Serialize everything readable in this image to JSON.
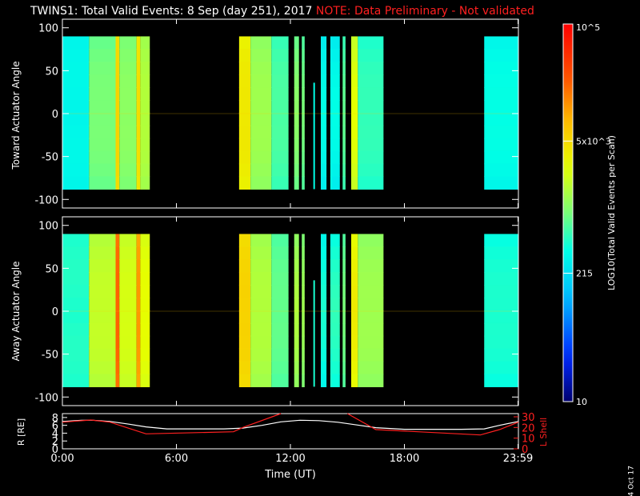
{
  "header": {
    "title": "TWINS1: Total Valid Events:  8 Sep (day 251), 2017",
    "note": "NOTE: Data Preliminary - Not validated",
    "date_stamp": "4 Oct 17"
  },
  "colors": {
    "background": "#000000",
    "foreground": "#ffffff",
    "note": "#ff2020",
    "l_shell_line": "#ff2020",
    "r_line": "#ffffff"
  },
  "chart_data": [
    {
      "type": "heatmap",
      "panel": "toward",
      "ylabel": "Toward Actuator Angle",
      "ylim": [
        -110,
        110
      ],
      "yticks": [
        100,
        50,
        0,
        -50,
        -100
      ],
      "xlim": [
        0,
        24
      ],
      "data_angle_range": [
        -88,
        90
      ],
      "blocks": [
        {
          "t0": 0.0,
          "t1": 1.4,
          "base": 0.38,
          "edge": 0.42
        },
        {
          "t0": 1.4,
          "t1": 2.8,
          "base": 0.5,
          "edge": 0.52
        },
        {
          "t0": 2.8,
          "t1": 3.0,
          "base": 0.7,
          "edge": 0.72
        },
        {
          "t0": 3.0,
          "t1": 3.9,
          "base": 0.52,
          "edge": 0.54
        },
        {
          "t0": 3.9,
          "t1": 4.1,
          "base": 0.68,
          "edge": 0.7
        },
        {
          "t0": 4.1,
          "t1": 4.6,
          "base": 0.56,
          "edge": 0.58
        },
        {
          "t0": 9.3,
          "t1": 9.9,
          "base": 0.66,
          "edge": 0.68
        },
        {
          "t0": 9.9,
          "t1": 11.0,
          "base": 0.54,
          "edge": 0.56
        },
        {
          "t0": 11.0,
          "t1": 11.9,
          "base": 0.46,
          "edge": 0.48
        },
        {
          "t0": 12.2,
          "t1": 12.45,
          "base": 0.52,
          "edge": 0.52
        },
        {
          "t0": 12.6,
          "t1": 12.75,
          "base": 0.5,
          "edge": 0.5
        },
        {
          "t0": 13.6,
          "t1": 13.9,
          "base": 0.4,
          "edge": 0.4
        },
        {
          "t0": 14.1,
          "t1": 14.6,
          "base": 0.4,
          "edge": 0.4
        },
        {
          "t0": 14.75,
          "t1": 14.9,
          "base": 0.48,
          "edge": 0.48
        },
        {
          "t0": 15.2,
          "t1": 15.55,
          "base": 0.62,
          "edge": 0.62
        },
        {
          "t0": 15.55,
          "t1": 16.9,
          "base": 0.44,
          "edge": 0.46
        },
        {
          "t0": 22.2,
          "t1": 24.0,
          "base": 0.4,
          "edge": 0.42
        }
      ],
      "spikes": [
        {
          "t": 13.25,
          "a0": -88,
          "a1": 36,
          "level": 0.4
        },
        {
          "t": 14.15,
          "a0": -88,
          "a1": -50,
          "level": 0.4
        }
      ]
    },
    {
      "type": "heatmap",
      "panel": "away",
      "ylabel": "Away Actuator Angle",
      "ylim": [
        -110,
        110
      ],
      "yticks": [
        100,
        50,
        0,
        -50,
        -100
      ],
      "xlim": [
        0,
        24
      ],
      "data_angle_range": [
        -88,
        90
      ],
      "blocks": [
        {
          "t0": 0.0,
          "t1": 1.4,
          "base": 0.42,
          "edge": 0.46
        },
        {
          "t0": 1.4,
          "t1": 2.8,
          "base": 0.58,
          "edge": 0.6
        },
        {
          "t0": 2.8,
          "t1": 3.0,
          "base": 0.84,
          "edge": 0.86
        },
        {
          "t0": 3.0,
          "t1": 3.9,
          "base": 0.6,
          "edge": 0.62
        },
        {
          "t0": 3.9,
          "t1": 4.1,
          "base": 0.78,
          "edge": 0.8
        },
        {
          "t0": 4.1,
          "t1": 4.6,
          "base": 0.62,
          "edge": 0.64
        },
        {
          "t0": 9.3,
          "t1": 9.9,
          "base": 0.7,
          "edge": 0.72
        },
        {
          "t0": 9.9,
          "t1": 11.0,
          "base": 0.56,
          "edge": 0.58
        },
        {
          "t0": 11.0,
          "t1": 11.9,
          "base": 0.48,
          "edge": 0.5
        },
        {
          "t0": 12.2,
          "t1": 12.45,
          "base": 0.56,
          "edge": 0.56
        },
        {
          "t0": 12.6,
          "t1": 12.75,
          "base": 0.54,
          "edge": 0.54
        },
        {
          "t0": 13.6,
          "t1": 13.9,
          "base": 0.42,
          "edge": 0.42
        },
        {
          "t0": 14.1,
          "t1": 14.6,
          "base": 0.44,
          "edge": 0.44
        },
        {
          "t0": 14.75,
          "t1": 14.9,
          "base": 0.5,
          "edge": 0.5
        },
        {
          "t0": 15.2,
          "t1": 15.55,
          "base": 0.66,
          "edge": 0.66
        },
        {
          "t0": 15.55,
          "t1": 16.9,
          "base": 0.54,
          "edge": 0.56
        },
        {
          "t0": 22.2,
          "t1": 24.0,
          "base": 0.42,
          "edge": 0.44
        }
      ],
      "spikes": [
        {
          "t": 13.25,
          "a0": -88,
          "a1": 36,
          "level": 0.42
        },
        {
          "t": 14.15,
          "a0": -88,
          "a1": -50,
          "level": 0.42
        }
      ]
    },
    {
      "type": "line",
      "panel": "orbit",
      "ylabel_left": "R [RE]",
      "ylabel_right": "L Shell",
      "xlabel": "Time (UT)",
      "xlim": [
        0,
        24
      ],
      "xticks": [
        "0:00",
        "6:00",
        "12:00",
        "18:00",
        "23:59"
      ],
      "xtick_values": [
        0,
        6,
        12,
        18,
        23.98
      ],
      "ylim_left": [
        0,
        9
      ],
      "yticks_left": [
        0,
        2,
        4,
        6,
        8
      ],
      "ylim_right": [
        0,
        33
      ],
      "yticks_right": [
        0,
        10,
        20,
        30
      ],
      "series": [
        {
          "name": "R [RE]",
          "axis": "left",
          "x": [
            0,
            1,
            1.6,
            2.5,
            3.5,
            4.4,
            5.5,
            7.0,
            8.5,
            9.5,
            10.5,
            11.5,
            12.5,
            13.5,
            14.5,
            15.5,
            16.5,
            18.0,
            19.5,
            21.0,
            22.2,
            23.0,
            24.0
          ],
          "y": [
            7.0,
            7.3,
            7.3,
            7.0,
            6.3,
            5.6,
            5.1,
            5.1,
            5.1,
            5.3,
            6.0,
            6.9,
            7.3,
            7.2,
            6.8,
            6.1,
            5.4,
            5.0,
            5.0,
            5.0,
            5.1,
            6.0,
            7.0
          ]
        },
        {
          "name": "L Shell",
          "axis": "right",
          "segments": [
            {
              "x": [
                0,
                1.5,
                2.5,
                4.4,
                9.0,
                9.5,
                11.5
              ],
              "y": [
                25,
                27,
                25,
                14,
                16,
                20,
                33
              ]
            },
            {
              "x": [
                15.0,
                16.5,
                22.0,
                23.0,
                24.0
              ],
              "y": [
                33,
                18,
                13,
                18,
                25
              ]
            }
          ]
        }
      ]
    }
  ],
  "colorbar": {
    "label": "LOG10(Total Valid Events per Scan)",
    "tick_labels": [
      "10^5",
      "5x10^3",
      "215",
      "10"
    ],
    "tick_fractions": [
      1.0,
      0.69,
      0.34,
      0.0
    ]
  }
}
